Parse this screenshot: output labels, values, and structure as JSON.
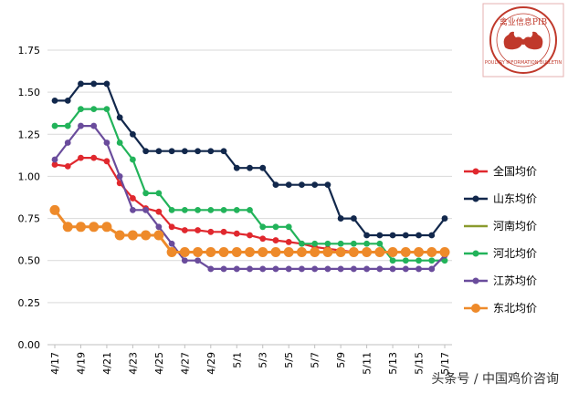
{
  "chart_data": {
    "type": "line",
    "title": "",
    "xlabel": "",
    "ylabel": "",
    "ylim": [
      0,
      1.75
    ],
    "yticks": [
      "0.00",
      "0.25",
      "0.50",
      "0.75",
      "1.00",
      "1.25",
      "1.50",
      "1.75"
    ],
    "categories": [
      "4/17",
      "4/18",
      "4/19",
      "4/20",
      "4/21",
      "4/22",
      "4/23",
      "4/24",
      "4/25",
      "4/26",
      "4/27",
      "4/28",
      "4/29",
      "4/30",
      "5/1",
      "5/2",
      "5/3",
      "5/4",
      "5/5",
      "5/6",
      "5/7",
      "5/8",
      "5/9",
      "5/10",
      "5/11",
      "5/12",
      "5/13",
      "5/14",
      "5/15",
      "5/16",
      "5/17"
    ],
    "xtick_labels": [
      "4/17",
      "4/19",
      "4/21",
      "4/23",
      "4/25",
      "4/27",
      "4/29",
      "5/1",
      "5/3",
      "5/5",
      "5/7",
      "5/9",
      "5/11",
      "5/13",
      "5/15",
      "5/17"
    ],
    "series": [
      {
        "name": "全国均价",
        "color": "#e0282e",
        "marker": "circle",
        "values": [
          1.07,
          1.06,
          1.11,
          1.11,
          1.09,
          0.96,
          0.87,
          0.81,
          0.79,
          0.7,
          0.68,
          0.68,
          0.67,
          0.67,
          0.66,
          0.65,
          0.63,
          0.62,
          0.61,
          0.6,
          0.58,
          0.57,
          0.56,
          0.55,
          0.55,
          0.55,
          0.55,
          0.55,
          0.55,
          0.55,
          0.55
        ]
      },
      {
        "name": "山东均价",
        "color": "#12284c",
        "marker": "circle",
        "values": [
          1.45,
          1.45,
          1.55,
          1.55,
          1.55,
          1.35,
          1.25,
          1.15,
          1.15,
          1.15,
          1.15,
          1.15,
          1.15,
          1.15,
          1.05,
          1.05,
          1.05,
          0.95,
          0.95,
          0.95,
          0.95,
          0.95,
          0.75,
          0.75,
          0.65,
          0.65,
          0.65,
          0.65,
          0.65,
          0.65,
          0.75
        ]
      },
      {
        "name": "河南均价",
        "color": "#8a9a2e",
        "marker": "none",
        "values": [
          null,
          null,
          null,
          null,
          null,
          null,
          null,
          null,
          null,
          null,
          null,
          null,
          null,
          null,
          null,
          null,
          null,
          null,
          null,
          null,
          null,
          null,
          null,
          null,
          null,
          0.55,
          0.55,
          0.55,
          0.55,
          0.55,
          0.55
        ]
      },
      {
        "name": "河北均价",
        "color": "#22b35a",
        "marker": "circle",
        "values": [
          1.3,
          1.3,
          1.4,
          1.4,
          1.4,
          1.2,
          1.1,
          0.9,
          0.9,
          0.8,
          0.8,
          0.8,
          0.8,
          0.8,
          0.8,
          0.8,
          0.7,
          0.7,
          0.7,
          0.6,
          0.6,
          0.6,
          0.6,
          0.6,
          0.6,
          0.6,
          0.5,
          0.5,
          0.5,
          0.5,
          0.5
        ]
      },
      {
        "name": "江苏均价",
        "color": "#6a4c9c",
        "marker": "circle",
        "values": [
          1.1,
          1.2,
          1.3,
          1.3,
          1.2,
          1.0,
          0.8,
          0.8,
          0.7,
          0.6,
          0.5,
          0.5,
          0.45,
          0.45,
          0.45,
          0.45,
          0.45,
          0.45,
          0.45,
          0.45,
          0.45,
          0.45,
          0.45,
          0.45,
          0.45,
          0.45,
          0.45,
          0.45,
          0.45,
          0.45,
          0.53
        ]
      },
      {
        "name": "东北均价",
        "color": "#ee8a2a",
        "marker": "bigcircle",
        "values": [
          0.8,
          0.7,
          0.7,
          0.7,
          0.7,
          0.65,
          0.65,
          0.65,
          0.65,
          0.55,
          0.55,
          0.55,
          0.55,
          0.55,
          0.55,
          0.55,
          0.55,
          0.55,
          0.55,
          0.55,
          0.55,
          0.55,
          0.55,
          0.55,
          0.55,
          0.55,
          0.55,
          0.55,
          0.55,
          0.55,
          0.55
        ]
      }
    ]
  },
  "watermark": "头条号 / 中国鸡价咨询",
  "seal": {
    "top_text": "禽业信息PIB",
    "bottom_text": "POULTRY INFORMATION BULLETIN",
    "border_color": "#c0392b"
  }
}
